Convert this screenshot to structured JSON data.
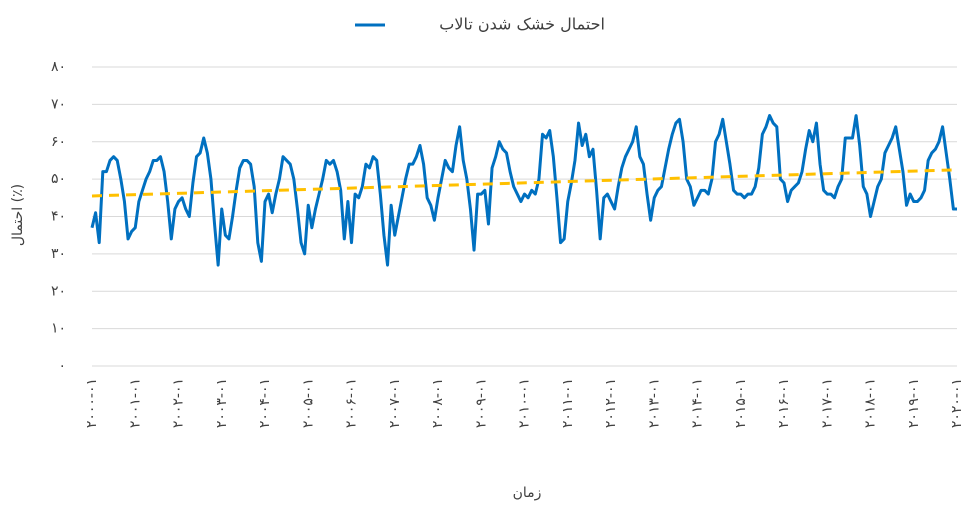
{
  "chart_data": {
    "type": "line",
    "y_label": "احتمال (٪)",
    "x_label": "زمان",
    "categories": [
      "۲۰۰۰-۰۱",
      null,
      null,
      null,
      null,
      null,
      null,
      null,
      null,
      null,
      null,
      null,
      "۲۰۰۱-۰۱",
      null,
      null,
      null,
      null,
      null,
      null,
      null,
      null,
      null,
      null,
      null,
      "۲۰۰۲-۰۱",
      null,
      null,
      null,
      null,
      null,
      null,
      null,
      null,
      null,
      null,
      null,
      "۲۰۰۳-۰۱",
      null,
      null,
      null,
      null,
      null,
      null,
      null,
      null,
      null,
      null,
      null,
      "۲۰۰۴-۰۱",
      null,
      null,
      null,
      null,
      null,
      null,
      null,
      null,
      null,
      null,
      null,
      "۲۰۰۵-۰۱",
      null,
      null,
      null,
      null,
      null,
      null,
      null,
      null,
      null,
      null,
      null,
      "۲۰۰۶-۰۱",
      null,
      null,
      null,
      null,
      null,
      null,
      null,
      null,
      null,
      null,
      null,
      "۲۰۰۷-۰۱",
      null,
      null,
      null,
      null,
      null,
      null,
      null,
      null,
      null,
      null,
      null,
      "۲۰۰۸-۰۱",
      null,
      null,
      null,
      null,
      null,
      null,
      null,
      null,
      null,
      null,
      null,
      "۲۰۰۹-۰۱",
      null,
      null,
      null,
      null,
      null,
      null,
      null,
      null,
      null,
      null,
      null,
      "۲۰۱۰-۰۱",
      null,
      null,
      null,
      null,
      null,
      null,
      null,
      null,
      null,
      null,
      null,
      "۲۰۱۱-۰۱",
      null,
      null,
      null,
      null,
      null,
      null,
      null,
      null,
      null,
      null,
      null,
      "۲۰۱۲-۰۱",
      null,
      null,
      null,
      null,
      null,
      null,
      null,
      null,
      null,
      null,
      null,
      "۲۰۱۳-۰۱",
      null,
      null,
      null,
      null,
      null,
      null,
      null,
      null,
      null,
      null,
      null,
      "۲۰۱۴-۰۱",
      null,
      null,
      null,
      null,
      null,
      null,
      null,
      null,
      null,
      null,
      null,
      "۲۰۱۵-۰۱",
      null,
      null,
      null,
      null,
      null,
      null,
      null,
      null,
      null,
      null,
      null,
      "۲۰۱۶-۰۱",
      null,
      null,
      null,
      null,
      null,
      null,
      null,
      null,
      null,
      null,
      null,
      "۲۰۱۷-۰۱",
      null,
      null,
      null,
      null,
      null,
      null,
      null,
      null,
      null,
      null,
      null,
      "۲۰۱۸-۰۱",
      null,
      null,
      null,
      null,
      null,
      null,
      null,
      null,
      null,
      null,
      null,
      "۲۰۱۹-۰۱",
      null,
      null,
      null,
      null,
      null,
      null,
      null,
      null,
      null,
      null,
      null,
      "۲۰۲۰-۰۱"
    ],
    "series": [
      {
        "name": "احتمال خشک شدن تالاب",
        "color": "#0070c0",
        "values": [
          37,
          41,
          33,
          52,
          52,
          55,
          56,
          55,
          50,
          44,
          34,
          36,
          37,
          44,
          47,
          50,
          52,
          55,
          55,
          56,
          52,
          44,
          34,
          42,
          44,
          45,
          42,
          40,
          49,
          56,
          57,
          61,
          57,
          50,
          38,
          27,
          42,
          35,
          34,
          40,
          47,
          53,
          55,
          55,
          54,
          48,
          33,
          28,
          44,
          46,
          41,
          46,
          50,
          56,
          55,
          54,
          50,
          42,
          33,
          30,
          43,
          37,
          42,
          46,
          50,
          55,
          54,
          55,
          52,
          47,
          34,
          44,
          33,
          46,
          45,
          48,
          54,
          53,
          56,
          55,
          46,
          35,
          27,
          43,
          35,
          40,
          45,
          50,
          54,
          54,
          56,
          59,
          54,
          45,
          43,
          39,
          45,
          50,
          55,
          53,
          52,
          59,
          64,
          55,
          50,
          42,
          31,
          46,
          46,
          47,
          38,
          53,
          56,
          60,
          58,
          57,
          52,
          48,
          46,
          44,
          46,
          45,
          47,
          46,
          50,
          62,
          61,
          63,
          56,
          45,
          33,
          34,
          44,
          49,
          55,
          65,
          59,
          62,
          56,
          58,
          47,
          34,
          45,
          46,
          44,
          42,
          48,
          53,
          56,
          58,
          60,
          64,
          56,
          54,
          46,
          39,
          45,
          47,
          48,
          53,
          58,
          62,
          65,
          66,
          60,
          50,
          48,
          43,
          45,
          47,
          47,
          46,
          50,
          60,
          62,
          66,
          60,
          54,
          47,
          46,
          46,
          45,
          46,
          46,
          48,
          53,
          62,
          64,
          67,
          65,
          64,
          50,
          49,
          44,
          47,
          48,
          49,
          52,
          58,
          63,
          60,
          65,
          54,
          47,
          46,
          46,
          45,
          48,
          50,
          61,
          61,
          61,
          67,
          59,
          48,
          46,
          40,
          44,
          48,
          50,
          57,
          59,
          61,
          64,
          58,
          52,
          43,
          46,
          44,
          44,
          45,
          47,
          55,
          57,
          58,
          60,
          64,
          57,
          50,
          42,
          42
        ]
      }
    ],
    "trend": {
      "color": "#ffc000",
      "values": [
        45.5,
        52.5
      ]
    },
    "ylim": [
      0,
      80
    ],
    "yticks": [
      {
        "value": 0,
        "label": "۰"
      },
      {
        "value": 10,
        "label": "۱۰"
      },
      {
        "value": 20,
        "label": "۲۰"
      },
      {
        "value": 30,
        "label": "۳۰"
      },
      {
        "value": 40,
        "label": "۴۰"
      },
      {
        "value": 50,
        "label": "۵۰"
      },
      {
        "value": 60,
        "label": "۶۰"
      },
      {
        "value": 70,
        "label": "۷۰"
      },
      {
        "value": 80,
        "label": "۸۰"
      }
    ],
    "grid": true
  }
}
